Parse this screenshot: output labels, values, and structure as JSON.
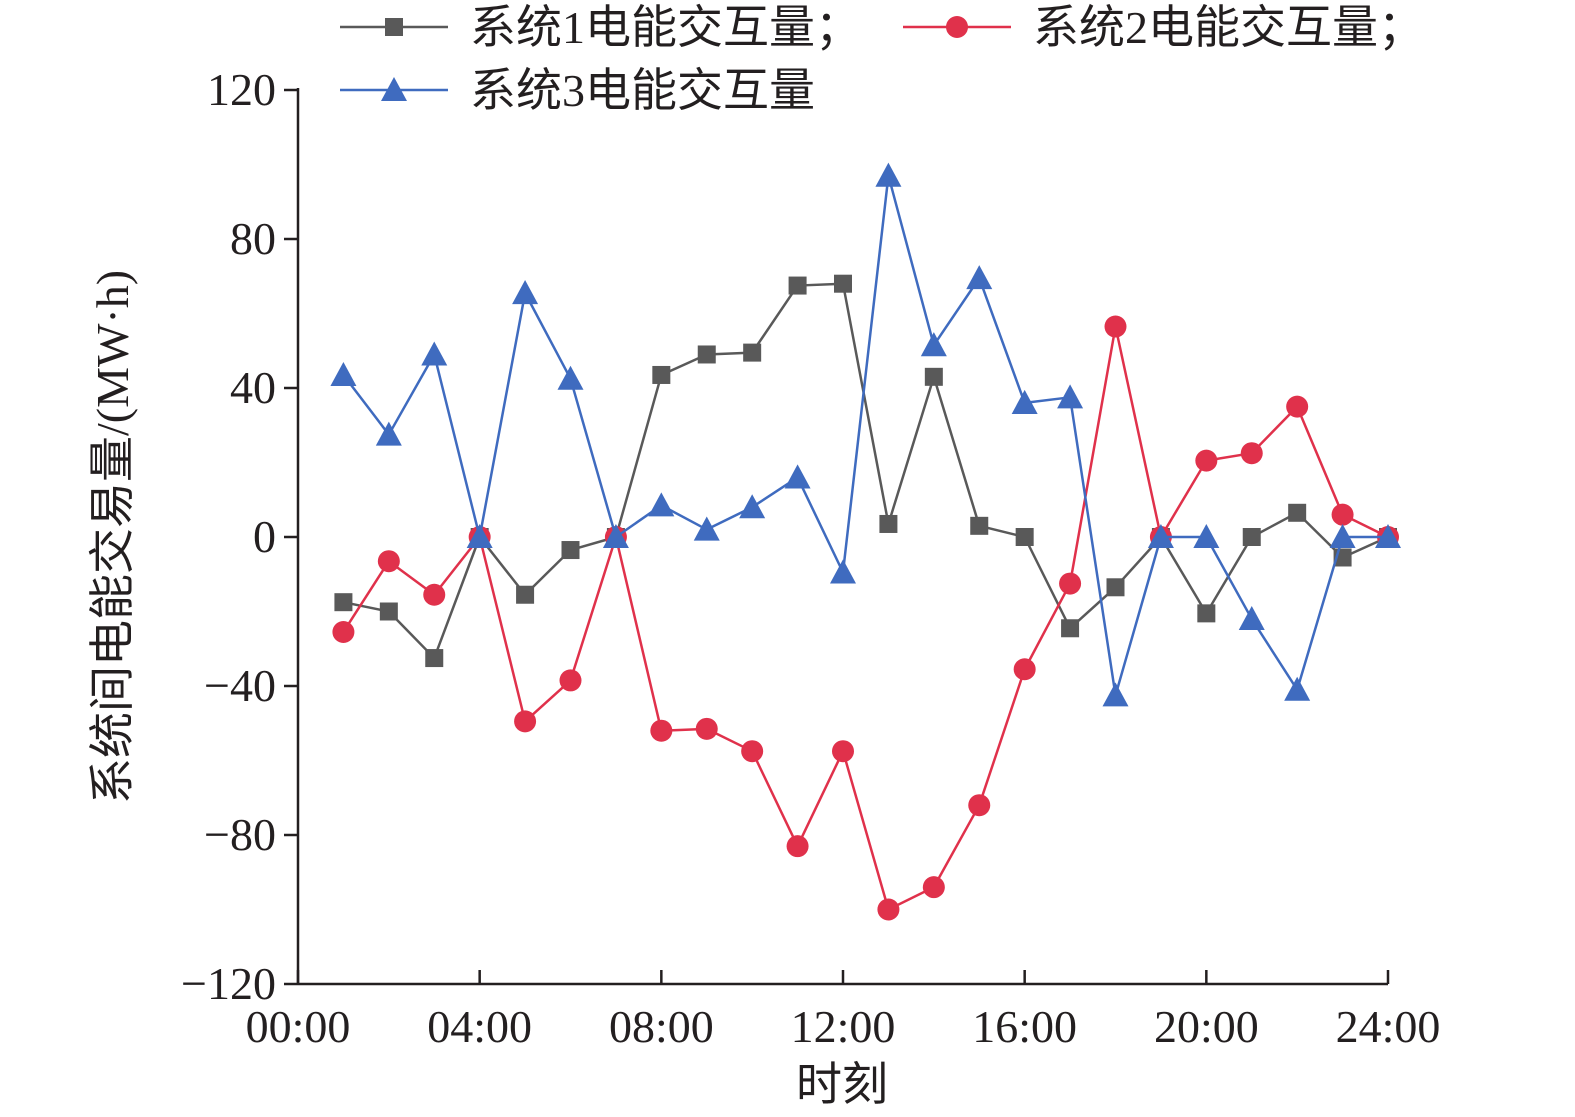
{
  "chart_data": {
    "type": "line",
    "xlabel": "时刻",
    "ylabel": "系统间电能交易量/(MW·h)",
    "ylim": [
      -120,
      120
    ],
    "xlim": [
      0,
      24
    ],
    "x_tick_values": [
      0,
      4,
      8,
      12,
      16,
      20,
      24
    ],
    "x_tick_labels": [
      "00:00",
      "04:00",
      "08:00",
      "12:00",
      "16:00",
      "20:00",
      "24:00"
    ],
    "y_tick_values": [
      -120,
      -80,
      -40,
      0,
      40,
      80,
      120
    ],
    "y_tick_labels": [
      "−120",
      "−80",
      "−40",
      "0",
      "40",
      "80",
      "120"
    ],
    "grid": false,
    "legend_position": "top",
    "x": [
      1,
      2,
      3,
      4,
      5,
      6,
      7,
      8,
      9,
      10,
      11,
      12,
      13,
      14,
      15,
      16,
      17,
      18,
      19,
      20,
      21,
      22,
      23,
      24
    ],
    "series": [
      {
        "name": "系统1电能交互量；",
        "color": "#595959",
        "marker": "square",
        "values": [
          -17.5,
          -20,
          -32.5,
          0,
          -15.5,
          -3.5,
          0,
          43.5,
          49,
          49.5,
          67.5,
          68,
          3.5,
          43,
          3,
          0,
          -24.5,
          -13.5,
          0,
          -20.5,
          0,
          6.5,
          -5.5,
          0
        ]
      },
      {
        "name": "系统2电能交互量；",
        "color": "#e0314b",
        "marker": "circle",
        "values": [
          -25.5,
          -6.5,
          -15.5,
          0,
          -49.5,
          -38.5,
          0,
          -52,
          -51.5,
          -57.5,
          -83,
          -57.5,
          -100,
          -94,
          -72,
          -35.5,
          -12.5,
          56.5,
          0,
          20.5,
          22.5,
          35,
          6,
          0
        ]
      },
      {
        "name": "系统3电能交互量",
        "color": "#3f6bbf",
        "marker": "triangle",
        "values": [
          43.5,
          27.5,
          49,
          0,
          65.5,
          42.5,
          0,
          8.5,
          2,
          8,
          16,
          -9.5,
          97,
          51.5,
          69.5,
          36,
          37.5,
          -42.5,
          0,
          0,
          -22,
          -41,
          0,
          0
        ]
      }
    ]
  }
}
